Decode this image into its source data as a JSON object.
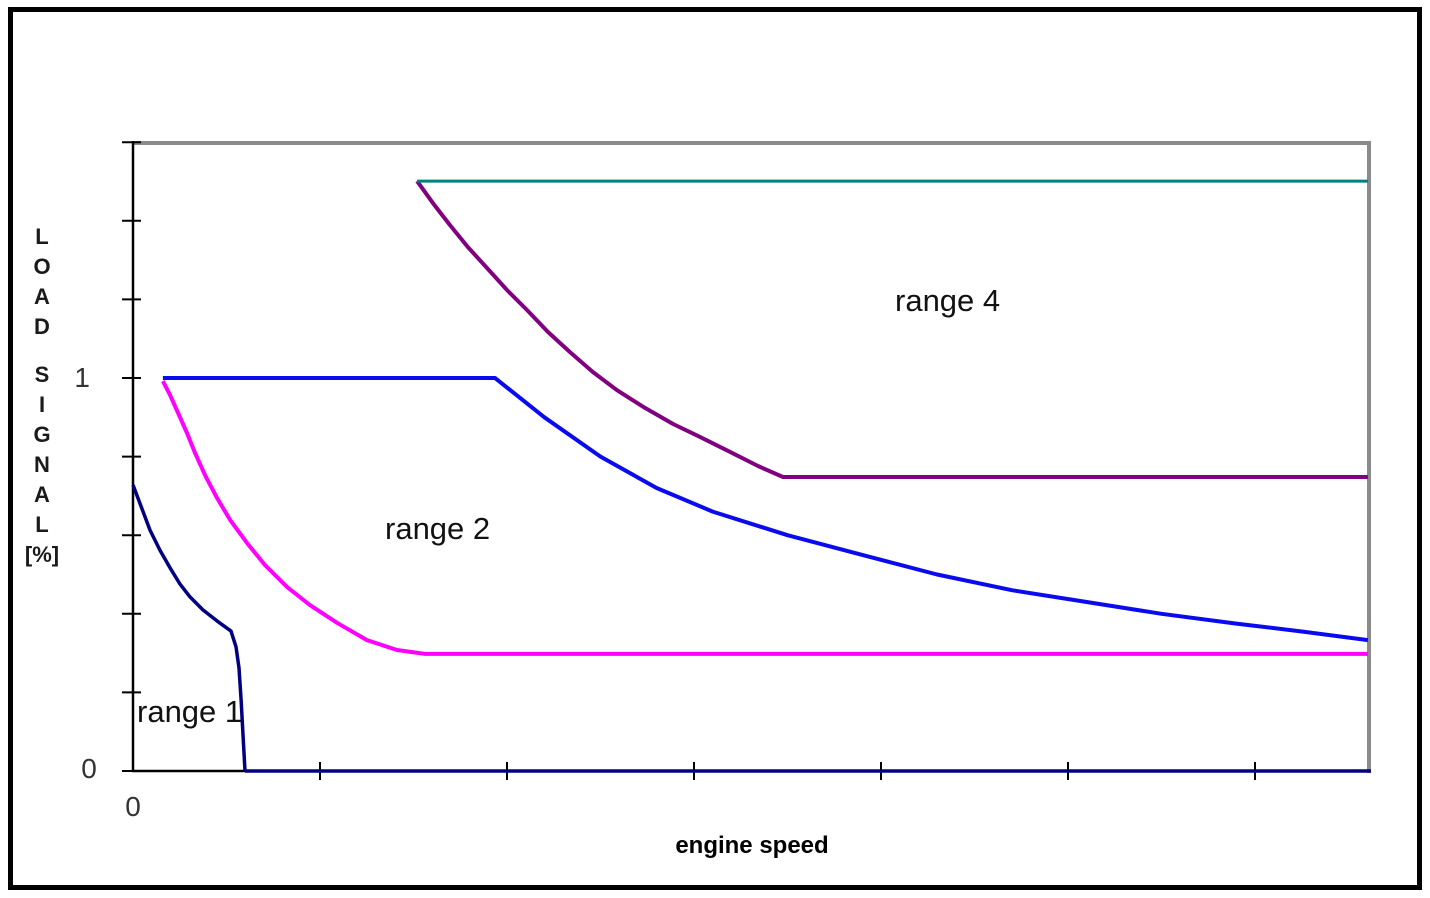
{
  "chart_data": {
    "type": "line",
    "title": "",
    "xlabel": "engine speed",
    "ylabel": "LOAD SIGNAL [%]",
    "x_axis": {
      "origin_label": "0",
      "range_units": [
        0,
        6.6
      ],
      "unlabeled_tick_positions": [
        1,
        2,
        3,
        4,
        5,
        6
      ],
      "grid": false
    },
    "y_axis": {
      "letters": [
        "L",
        "O",
        "A",
        "D",
        "S",
        "I",
        "G",
        "N",
        "A",
        "L",
        "[%]"
      ],
      "labeled_ticks": [
        {
          "value": 1,
          "label": "1"
        },
        {
          "value": 0,
          "label": "0"
        }
      ],
      "tick_step": 0.2,
      "range": [
        0,
        1.6
      ]
    },
    "series": [
      {
        "name": "zero-baseline",
        "color": "#000080",
        "width": 3.5,
        "points": [
          [
            0.599,
            0
          ],
          [
            6.62,
            0
          ]
        ]
      },
      {
        "name": "range-1-boundary",
        "color": "#000080",
        "width": 3.5,
        "points": [
          [
            0,
            0.728
          ],
          [
            0.091,
            0.613
          ],
          [
            0.144,
            0.562
          ],
          [
            0.198,
            0.517
          ],
          [
            0.251,
            0.476
          ],
          [
            0.305,
            0.443
          ],
          [
            0.374,
            0.41
          ],
          [
            0.449,
            0.382
          ],
          [
            0.524,
            0.356
          ],
          [
            0.551,
            0.316
          ],
          [
            0.567,
            0.262
          ],
          [
            0.578,
            0.181
          ],
          [
            0.588,
            0.092
          ],
          [
            0.599,
            0.0
          ]
        ]
      },
      {
        "name": "range-2-lower-boundary",
        "color": "#ff00ff",
        "width": 4,
        "points": [
          [
            0.16,
            0.992
          ],
          [
            0.198,
            0.957
          ],
          [
            0.241,
            0.911
          ],
          [
            0.289,
            0.86
          ],
          [
            0.332,
            0.809
          ],
          [
            0.385,
            0.753
          ],
          [
            0.449,
            0.695
          ],
          [
            0.519,
            0.639
          ],
          [
            0.61,
            0.58
          ],
          [
            0.706,
            0.524
          ],
          [
            0.824,
            0.468
          ],
          [
            0.947,
            0.422
          ],
          [
            1.091,
            0.377
          ],
          [
            1.251,
            0.333
          ],
          [
            1.412,
            0.308
          ],
          [
            1.561,
            0.298
          ],
          [
            6.604,
            0.298
          ]
        ]
      },
      {
        "name": "range-2-upper-boundary",
        "color": "#0a0aee",
        "width": 4,
        "points": [
          [
            0.16,
            1.0
          ],
          [
            1.936,
            1.0
          ],
          [
            2.2,
            0.9
          ],
          [
            2.5,
            0.8
          ],
          [
            2.8,
            0.72
          ],
          [
            3.1,
            0.66
          ],
          [
            3.5,
            0.6
          ],
          [
            3.9,
            0.55
          ],
          [
            4.3,
            0.5
          ],
          [
            4.7,
            0.46
          ],
          [
            5.1,
            0.43
          ],
          [
            5.5,
            0.4
          ],
          [
            5.9,
            0.375
          ],
          [
            6.25,
            0.355
          ],
          [
            6.604,
            0.333
          ]
        ]
      },
      {
        "name": "range-4-lower-boundary",
        "color": "#800080",
        "width": 4,
        "points": [
          [
            1.519,
            1.501
          ],
          [
            1.604,
            1.445
          ],
          [
            1.695,
            1.389
          ],
          [
            1.791,
            1.333
          ],
          [
            1.893,
            1.28
          ],
          [
            2.0,
            1.224
          ],
          [
            2.107,
            1.173
          ],
          [
            2.219,
            1.117
          ],
          [
            2.337,
            1.066
          ],
          [
            2.46,
            1.015
          ],
          [
            2.588,
            0.969
          ],
          [
            2.738,
            0.924
          ],
          [
            2.888,
            0.883
          ],
          [
            3.032,
            0.85
          ],
          [
            3.193,
            0.812
          ],
          [
            3.342,
            0.776
          ],
          [
            3.476,
            0.748
          ],
          [
            6.604,
            0.748
          ]
        ]
      },
      {
        "name": "range-4-upper-boundary",
        "color": "#008080",
        "width": 3,
        "points": [
          [
            1.519,
            1.501
          ],
          [
            6.604,
            1.501
          ]
        ]
      }
    ],
    "annotations": [
      {
        "text": "range 1",
        "x_units": 0.3,
        "y_units": 0.15
      },
      {
        "text": "range 2",
        "x_units": 1.65,
        "y_units": 0.62
      },
      {
        "text": "range 4",
        "x_units": 4.37,
        "y_units": 1.2
      }
    ],
    "legend": "none",
    "plot_border_color": "#8a8a8a",
    "axis_color": "#000000"
  }
}
